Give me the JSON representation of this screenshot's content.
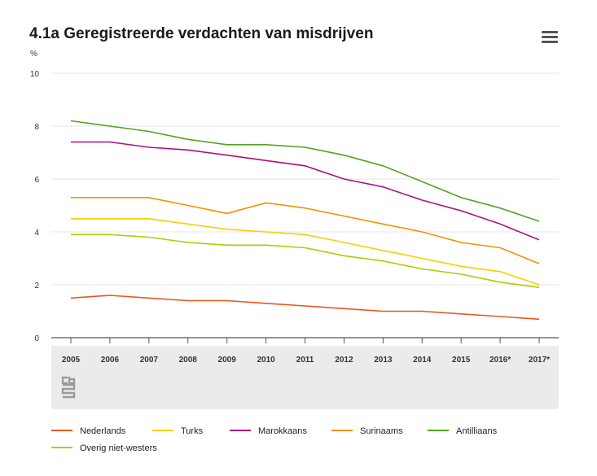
{
  "title": "4.1a Geregistreerde verdachten van misdrijven",
  "unit_label": "%",
  "menu_icon": "hamburger-menu-icon",
  "logo_icon": "cbs-logo-icon",
  "chart_data": {
    "type": "line",
    "title": "4.1a Geregistreerde verdachten van misdrijven",
    "xlabel": "",
    "ylabel": "%",
    "ylim": [
      0,
      10
    ],
    "yticks": [
      "0",
      "2",
      "4",
      "6",
      "8",
      "10"
    ],
    "categories": [
      "2005",
      "2006",
      "2007",
      "2008",
      "2009",
      "2010",
      "2011",
      "2012",
      "2013",
      "2014",
      "2015",
      "2016*",
      "2017*"
    ],
    "series": [
      {
        "name": "Nederlands",
        "color": "#e8571e",
        "values": [
          1.5,
          1.6,
          1.5,
          1.4,
          1.4,
          1.3,
          1.2,
          1.1,
          1.0,
          1.0,
          0.9,
          0.8,
          0.7
        ]
      },
      {
        "name": "Turks",
        "color": "#ffcc00",
        "values": [
          4.5,
          4.5,
          4.5,
          4.3,
          4.1,
          4.0,
          3.9,
          3.6,
          3.3,
          3.0,
          2.7,
          2.5,
          2.0
        ]
      },
      {
        "name": "Marokkaans",
        "color": "#af0e80",
        "values": [
          7.4,
          7.4,
          7.2,
          7.1,
          6.9,
          6.7,
          6.5,
          6.0,
          5.7,
          5.2,
          4.8,
          4.3,
          3.7
        ]
      },
      {
        "name": "Surinaams",
        "color": "#f39200",
        "values": [
          5.3,
          5.3,
          5.3,
          5.0,
          4.7,
          5.1,
          4.9,
          4.6,
          4.3,
          4.0,
          3.6,
          3.4,
          2.8
        ]
      },
      {
        "name": "Antilliaans",
        "color": "#53a31d",
        "values": [
          8.2,
          8.0,
          7.8,
          7.5,
          7.3,
          7.3,
          7.2,
          6.9,
          6.5,
          5.9,
          5.3,
          4.9,
          4.4
        ]
      },
      {
        "name": "Overig niet-westers",
        "color": "#afcb05",
        "values": [
          3.9,
          3.9,
          3.8,
          3.6,
          3.5,
          3.5,
          3.4,
          3.1,
          2.9,
          2.6,
          2.4,
          2.1,
          1.9
        ]
      }
    ],
    "grid": true,
    "legend_position": "bottom"
  }
}
